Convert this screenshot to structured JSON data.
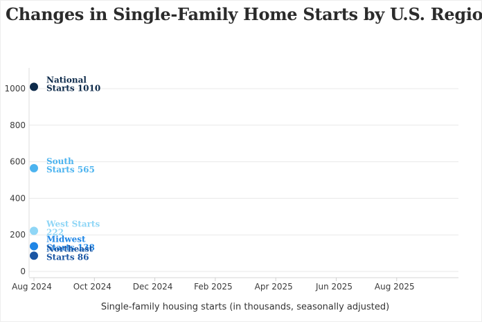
{
  "title": "Changes in Single-Family Home Starts by U.S. Region",
  "chart_data": {
    "type": "scatter",
    "title": "Changes in Single-Family Home Starts by U.S. Region",
    "xlabel": "Single-family housing starts (in thousands, seasonally adjusted)",
    "ylabel": "",
    "x_ticks": [
      "Aug 2024",
      "Oct 2024",
      "Dec 2024",
      "Feb 2025",
      "Apr 2025",
      "Jun 2025",
      "Aug 2025"
    ],
    "y_ticks": [
      0,
      200,
      400,
      600,
      800,
      1000
    ],
    "ylim": [
      -30,
      1120
    ],
    "grid": true,
    "series": [
      {
        "name": "National",
        "label_lines": [
          "National",
          "Starts 1010"
        ],
        "x": "Aug 2024",
        "value": 1010,
        "color": "#0d2a4a"
      },
      {
        "name": "South",
        "label_lines": [
          "South",
          "Starts 565"
        ],
        "x": "Aug 2024",
        "value": 565,
        "color": "#4bb3ef"
      },
      {
        "name": "West",
        "label_lines": [
          "West Starts",
          "222"
        ],
        "x": "Aug 2024",
        "value": 222,
        "color": "#8fd6f6"
      },
      {
        "name": "Midwest",
        "label_lines": [
          "Midwest",
          "Starts 138"
        ],
        "x": "Aug 2024",
        "value": 138,
        "color": "#1f86e6"
      },
      {
        "name": "Northeast",
        "label_lines": [
          "Northeast",
          "Starts 86"
        ],
        "x": "Aug 2024",
        "value": 86,
        "color": "#1a55a3"
      }
    ]
  }
}
